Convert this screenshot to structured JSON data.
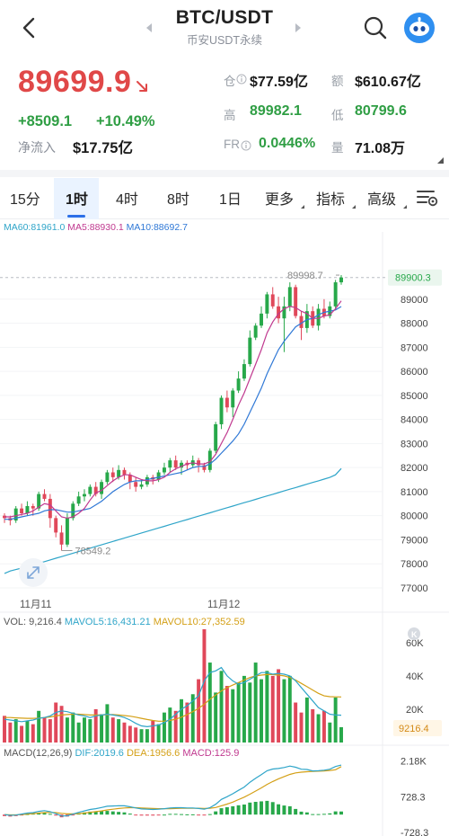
{
  "header": {
    "title": "BTC/USDT",
    "subtitle": "币安USDT永续"
  },
  "price": {
    "last": "89699.9",
    "change": "+8509.1",
    "change_pct": "+10.49%",
    "net_inflow_label": "净流入",
    "net_inflow": "$17.75亿"
  },
  "stats": {
    "open_interest_label": "仓",
    "open_interest": "$77.59亿",
    "amount_label": "额",
    "amount": "$610.67亿",
    "high_label": "高",
    "high": "89982.1",
    "low_label": "低",
    "low": "80799.6",
    "funding_label": "FR",
    "funding": "0.0446%",
    "volume_label": "量",
    "volume": "71.08万"
  },
  "tabs": [
    "15分",
    "1时",
    "4时",
    "8时",
    "1日",
    "更多",
    "指标",
    "高级"
  ],
  "active_tab": "1时",
  "ma": {
    "ma60": "MA60:81961.0",
    "ma5": "MA5:88930.1",
    "ma10": "MA10:88692.7"
  },
  "volume": {
    "vol": "VOL: 9,216.4",
    "mavol5": "MAVOL5:16,431.21",
    "mavol10": "MAVOL10:27,352.59",
    "axis": [
      "60K",
      "40K",
      "20K"
    ],
    "current": "9216.4",
    "badge": "K"
  },
  "macd": {
    "params": "MACD(12,26,9)",
    "dif": "DIF:2019.6",
    "dea": "DEA:1956.6",
    "macd": "MACD:125.9",
    "axis": [
      "2.18K",
      "728.3",
      "-728.3"
    ]
  },
  "chart_data": {
    "type": "candlestick",
    "interval": "1时",
    "price_axis": [
      "89000",
      "88000",
      "87000",
      "86000",
      "85000",
      "84000",
      "83000",
      "82000",
      "81000",
      "80000",
      "79000",
      "78000",
      "77000"
    ],
    "ylim": [
      76700,
      90300
    ],
    "current_price_label": "89900.3",
    "high_annotation": "89998.7",
    "low_annotation": "78549.2",
    "x_labels": [
      "11月11",
      "11月12"
    ],
    "candles": [
      [
        80000,
        79900,
        80100,
        79700
      ],
      [
        79900,
        79800,
        80000,
        79600
      ],
      [
        79800,
        80300,
        80400,
        79700
      ],
      [
        80300,
        80100,
        80500,
        80000
      ],
      [
        80100,
        80400,
        80600,
        80000
      ],
      [
        80400,
        80300,
        80500,
        80000
      ],
      [
        80300,
        80900,
        81000,
        80200
      ],
      [
        80900,
        80700,
        81100,
        80600
      ],
      [
        80700,
        79900,
        80900,
        79500
      ],
      [
        79900,
        79300,
        80000,
        79100
      ],
      [
        79300,
        78800,
        79600,
        78549
      ],
      [
        78800,
        79900,
        80100,
        78700
      ],
      [
        79900,
        80500,
        80600,
        79800
      ],
      [
        80500,
        80800,
        81000,
        80400
      ],
      [
        80800,
        80900,
        81100,
        80600
      ],
      [
        80900,
        81200,
        81300,
        80800
      ],
      [
        81200,
        80900,
        81400,
        80800
      ],
      [
        80900,
        81400,
        81500,
        80700
      ],
      [
        81400,
        81800,
        81900,
        81300
      ],
      [
        81800,
        81600,
        82000,
        81400
      ],
      [
        81600,
        81900,
        82100,
        81500
      ],
      [
        81900,
        81700,
        82000,
        81500
      ],
      [
        81700,
        81400,
        81800,
        81100
      ],
      [
        81400,
        81200,
        81600,
        81000
      ],
      [
        81200,
        81300,
        81500,
        81100
      ],
      [
        81300,
        81600,
        81700,
        81200
      ],
      [
        81600,
        81500,
        81700,
        81300
      ],
      [
        81500,
        81800,
        81900,
        81400
      ],
      [
        81800,
        82000,
        82200,
        81700
      ],
      [
        82000,
        82300,
        82400,
        81800
      ],
      [
        82300,
        82000,
        82500,
        81900
      ],
      [
        82000,
        82200,
        82300,
        81700
      ],
      [
        82200,
        82100,
        82300,
        81900
      ],
      [
        82100,
        82300,
        82500,
        82000
      ],
      [
        82300,
        82100,
        82400,
        81800
      ],
      [
        82100,
        81900,
        82200,
        81800
      ],
      [
        81900,
        82700,
        82800,
        81800
      ],
      [
        82700,
        83800,
        83900,
        82600
      ],
      [
        83800,
        84900,
        85000,
        83600
      ],
      [
        84900,
        84500,
        85200,
        84300
      ],
      [
        84500,
        85200,
        85300,
        84100
      ],
      [
        85200,
        85700,
        86000,
        85100
      ],
      [
        85700,
        86300,
        86500,
        85600
      ],
      [
        86300,
        87400,
        87700,
        86200
      ],
      [
        87400,
        87900,
        88000,
        87300
      ],
      [
        87900,
        88400,
        88700,
        87800
      ],
      [
        88400,
        89200,
        89300,
        88200
      ],
      [
        89200,
        88700,
        89500,
        88600
      ],
      [
        88700,
        88200,
        89100,
        88000
      ],
      [
        88200,
        88700,
        89100,
        86800
      ],
      [
        88700,
        89500,
        89700,
        88500
      ],
      [
        89500,
        88300,
        89600,
        88200
      ],
      [
        88300,
        87800,
        88500,
        87300
      ],
      [
        87800,
        88500,
        88800,
        87600
      ],
      [
        88500,
        87900,
        88700,
        87800
      ],
      [
        87900,
        88600,
        88800,
        87700
      ],
      [
        88600,
        88300,
        89000,
        88200
      ],
      [
        88300,
        88700,
        88900,
        88200
      ],
      [
        88700,
        89700,
        89800,
        88600
      ],
      [
        89700,
        89900,
        89999,
        89600
      ]
    ],
    "ma5": [
      79950,
      79950,
      80000,
      80050,
      80100,
      80200,
      80350,
      80500,
      80450,
      80200,
      79950,
      79900,
      79950,
      80100,
      80300,
      80650,
      80950,
      81050,
      81250,
      81450,
      81600,
      81700,
      81700,
      81600,
      81500,
      81450,
      81450,
      81500,
      81600,
      81800,
      81950,
      82050,
      82150,
      82200,
      82150,
      82150,
      82250,
      82550,
      83000,
      83450,
      84000,
      84600,
      85100,
      85700,
      86300,
      86900,
      87600,
      88050,
      88400,
      88600,
      88700,
      88650,
      88500,
      88400,
      88200,
      88200,
      88300,
      88350,
      88600,
      88930
    ],
    "ma10": [
      79850,
      79850,
      79900,
      79950,
      80000,
      80050,
      80100,
      80200,
      80250,
      80250,
      80200,
      80150,
      80150,
      80200,
      80250,
      80300,
      80450,
      80600,
      80800,
      81000,
      81150,
      81300,
      81400,
      81450,
      81450,
      81500,
      81550,
      81600,
      81650,
      81700,
      81750,
      81800,
      81900,
      82000,
      82050,
      82050,
      82150,
      82350,
      82600,
      82850,
      83100,
      83400,
      83800,
      84300,
      84800,
      85300,
      85900,
      86400,
      86900,
      87250,
      87550,
      87850,
      88000,
      88150,
      88200,
      88350,
      88450,
      88500,
      88550,
      88693
    ],
    "ma60": [
      77600,
      77700,
      77760,
      77820,
      77880,
      77950,
      78020,
      78090,
      78160,
      78230,
      78300,
      78370,
      78440,
      78510,
      78580,
      78650,
      78720,
      78790,
      78860,
      78930,
      79000,
      79070,
      79140,
      79210,
      79280,
      79350,
      79420,
      79490,
      79560,
      79630,
      79700,
      79770,
      79840,
      79910,
      79980,
      80050,
      80120,
      80190,
      80260,
      80330,
      80400,
      80470,
      80540,
      80610,
      80680,
      80750,
      80820,
      80890,
      80960,
      81030,
      81100,
      81170,
      81240,
      81310,
      81380,
      81450,
      81520,
      81590,
      81700,
      81961
    ],
    "volume": {
      "ylim": [
        0,
        68000
      ],
      "values": [
        16000,
        12000,
        14000,
        10000,
        13000,
        11000,
        19000,
        15000,
        14000,
        24000,
        22000,
        15000,
        18000,
        12000,
        15000,
        14000,
        20000,
        17000,
        23000,
        15000,
        14000,
        12000,
        10000,
        9000,
        8000,
        8000,
        13000,
        11000,
        18000,
        21000,
        19000,
        26000,
        24000,
        29000,
        38000,
        68000,
        48000,
        30000,
        43000,
        34000,
        32000,
        36000,
        40000,
        36000,
        48000,
        38000,
        43000,
        40000,
        44000,
        38000,
        40000,
        24000,
        18000,
        27000,
        20000,
        17000,
        19000,
        12000,
        27000,
        9216
      ],
      "mavol5": [
        14000,
        13500,
        13000,
        12500,
        13000,
        13500,
        14500,
        15000,
        16000,
        18000,
        19000,
        18500,
        17500,
        16500,
        16000,
        15000,
        16000,
        16500,
        17000,
        16500,
        16000,
        15000,
        13500,
        11500,
        10000,
        9500,
        10000,
        10500,
        12000,
        14000,
        17000,
        20000,
        22000,
        25000,
        28000,
        37000,
        42000,
        43000,
        45000,
        40000,
        37000,
        35000,
        36000,
        38000,
        40000,
        42000,
        42000,
        41000,
        41500,
        41000,
        40000,
        37000,
        33000,
        29000,
        25000,
        21000,
        19000,
        17000,
        16500,
        16431
      ],
      "mavol10": [
        15000,
        15000,
        14800,
        14600,
        14500,
        14500,
        14700,
        15000,
        15300,
        16000,
        16500,
        16800,
        17000,
        17000,
        16800,
        16500,
        16500,
        16500,
        16700,
        16800,
        16500,
        16200,
        15800,
        15200,
        14500,
        13800,
        13200,
        12800,
        12800,
        13200,
        14000,
        15200,
        16800,
        18500,
        20500,
        23000,
        26000,
        28500,
        31000,
        33000,
        34500,
        36000,
        37500,
        39000,
        40000,
        40500,
        40800,
        40800,
        40500,
        40000,
        39000,
        37500,
        35500,
        33500,
        31500,
        29500,
        28000,
        27500,
        27400,
        27353
      ]
    },
    "macd": {
      "ylim": [
        -800,
        2500
      ],
      "dif": [
        0,
        -30,
        -20,
        20,
        60,
        80,
        130,
        160,
        120,
        40,
        -60,
        -50,
        20,
        90,
        150,
        210,
        240,
        290,
        340,
        350,
        360,
        360,
        320,
        270,
        230,
        220,
        210,
        220,
        240,
        270,
        280,
        280,
        270,
        270,
        250,
        220,
        280,
        420,
        620,
        730,
        850,
        990,
        1120,
        1320,
        1480,
        1630,
        1790,
        1860,
        1880,
        1920,
        1980,
        1930,
        1850,
        1840,
        1780,
        1790,
        1810,
        1850,
        1960,
        2020
      ],
      "dea": [
        0,
        -10,
        -10,
        0,
        20,
        40,
        60,
        80,
        90,
        80,
        50,
        30,
        30,
        40,
        60,
        90,
        120,
        150,
        190,
        220,
        250,
        270,
        280,
        280,
        270,
        260,
        250,
        240,
        240,
        240,
        250,
        260,
        260,
        260,
        260,
        250,
        260,
        290,
        360,
        430,
        510,
        610,
        710,
        830,
        960,
        1090,
        1230,
        1350,
        1460,
        1550,
        1640,
        1700,
        1730,
        1750,
        1760,
        1770,
        1780,
        1800,
        1830,
        1957
      ],
      "hist": [
        -60,
        -80,
        -60,
        -20,
        20,
        40,
        80,
        80,
        30,
        -40,
        -110,
        -80,
        -10,
        50,
        90,
        120,
        120,
        140,
        150,
        130,
        110,
        90,
        40,
        -10,
        -40,
        -40,
        -40,
        -20,
        0,
        30,
        30,
        20,
        10,
        10,
        -10,
        -30,
        20,
        130,
        260,
        300,
        340,
        380,
        410,
        490,
        520,
        540,
        560,
        510,
        420,
        370,
        340,
        230,
        120,
        90,
        20,
        20,
        30,
        50,
        130,
        126
      ]
    }
  }
}
